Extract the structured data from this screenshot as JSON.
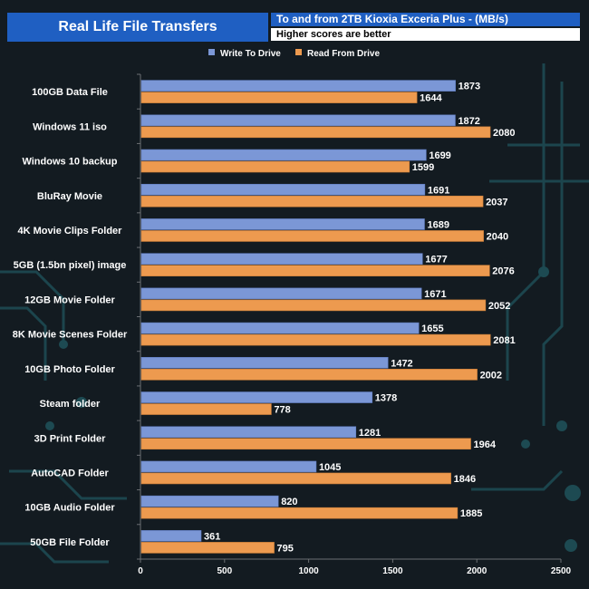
{
  "header": {
    "title": "Real Life File Transfers",
    "subtitle": "To and from 2TB Kioxia Exceria Plus - (MB/s)",
    "note": "Higher scores are better"
  },
  "colors": {
    "write": "#7b97d6",
    "read": "#ed9a4f",
    "title_bg": "#1f5fc2"
  },
  "chart_data": {
    "type": "bar",
    "orientation": "horizontal",
    "title": "Real Life File Transfers",
    "xlabel": "",
    "ylabel": "",
    "xlim": [
      0,
      2500
    ],
    "ticks": [
      0,
      500,
      1000,
      1500,
      2000,
      2500
    ],
    "legend_position": "top",
    "categories": [
      "100GB Data File",
      "Windows 11 iso",
      "Windows 10 backup",
      "BluRay Movie",
      "4K Movie Clips Folder",
      "5GB (1.5bn pixel) image",
      "12GB Movie Folder",
      "8K Movie Scenes Folder",
      "10GB Photo Folder",
      "Steam folder",
      "3D Print Folder",
      "AutoCAD Folder",
      "10GB Audio Folder",
      "50GB File Folder"
    ],
    "series": [
      {
        "name": "Write To  Drive",
        "values": [
          1873,
          1872,
          1699,
          1691,
          1689,
          1677,
          1671,
          1655,
          1472,
          1378,
          1281,
          1045,
          820,
          361
        ]
      },
      {
        "name": "Read From  Drive",
        "values": [
          1644,
          2080,
          1599,
          2037,
          2040,
          2076,
          2052,
          2081,
          2002,
          778,
          1964,
          1846,
          1885,
          795
        ]
      }
    ]
  }
}
